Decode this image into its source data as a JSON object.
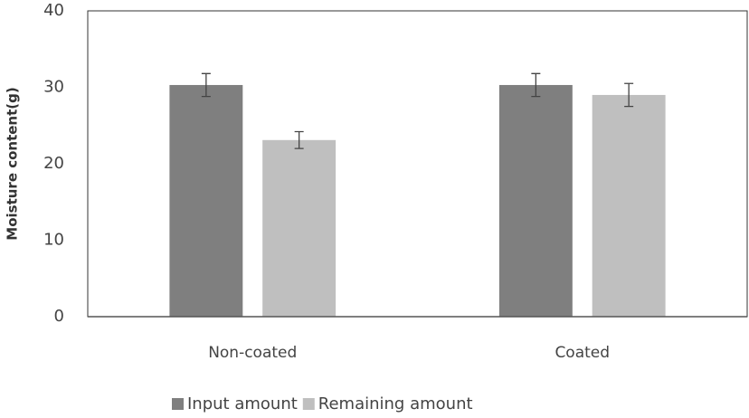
{
  "chart_data": {
    "type": "bar",
    "y_label": "Moisture content(g)",
    "categories": [
      "Non-coated",
      "Coated"
    ],
    "series": [
      {
        "name": "Input amount",
        "color": "#7f7f7f",
        "values": [
          30.3,
          30.3
        ],
        "errors": [
          1.5,
          1.5
        ]
      },
      {
        "name": "Remaining amount",
        "color": "#bfbfbf",
        "values": [
          23.1,
          29.0
        ],
        "errors": [
          1.1,
          1.5
        ]
      }
    ],
    "ylim": [
      0,
      40
    ],
    "yticks": [
      0,
      10,
      20,
      30,
      40
    ],
    "grid": false
  }
}
